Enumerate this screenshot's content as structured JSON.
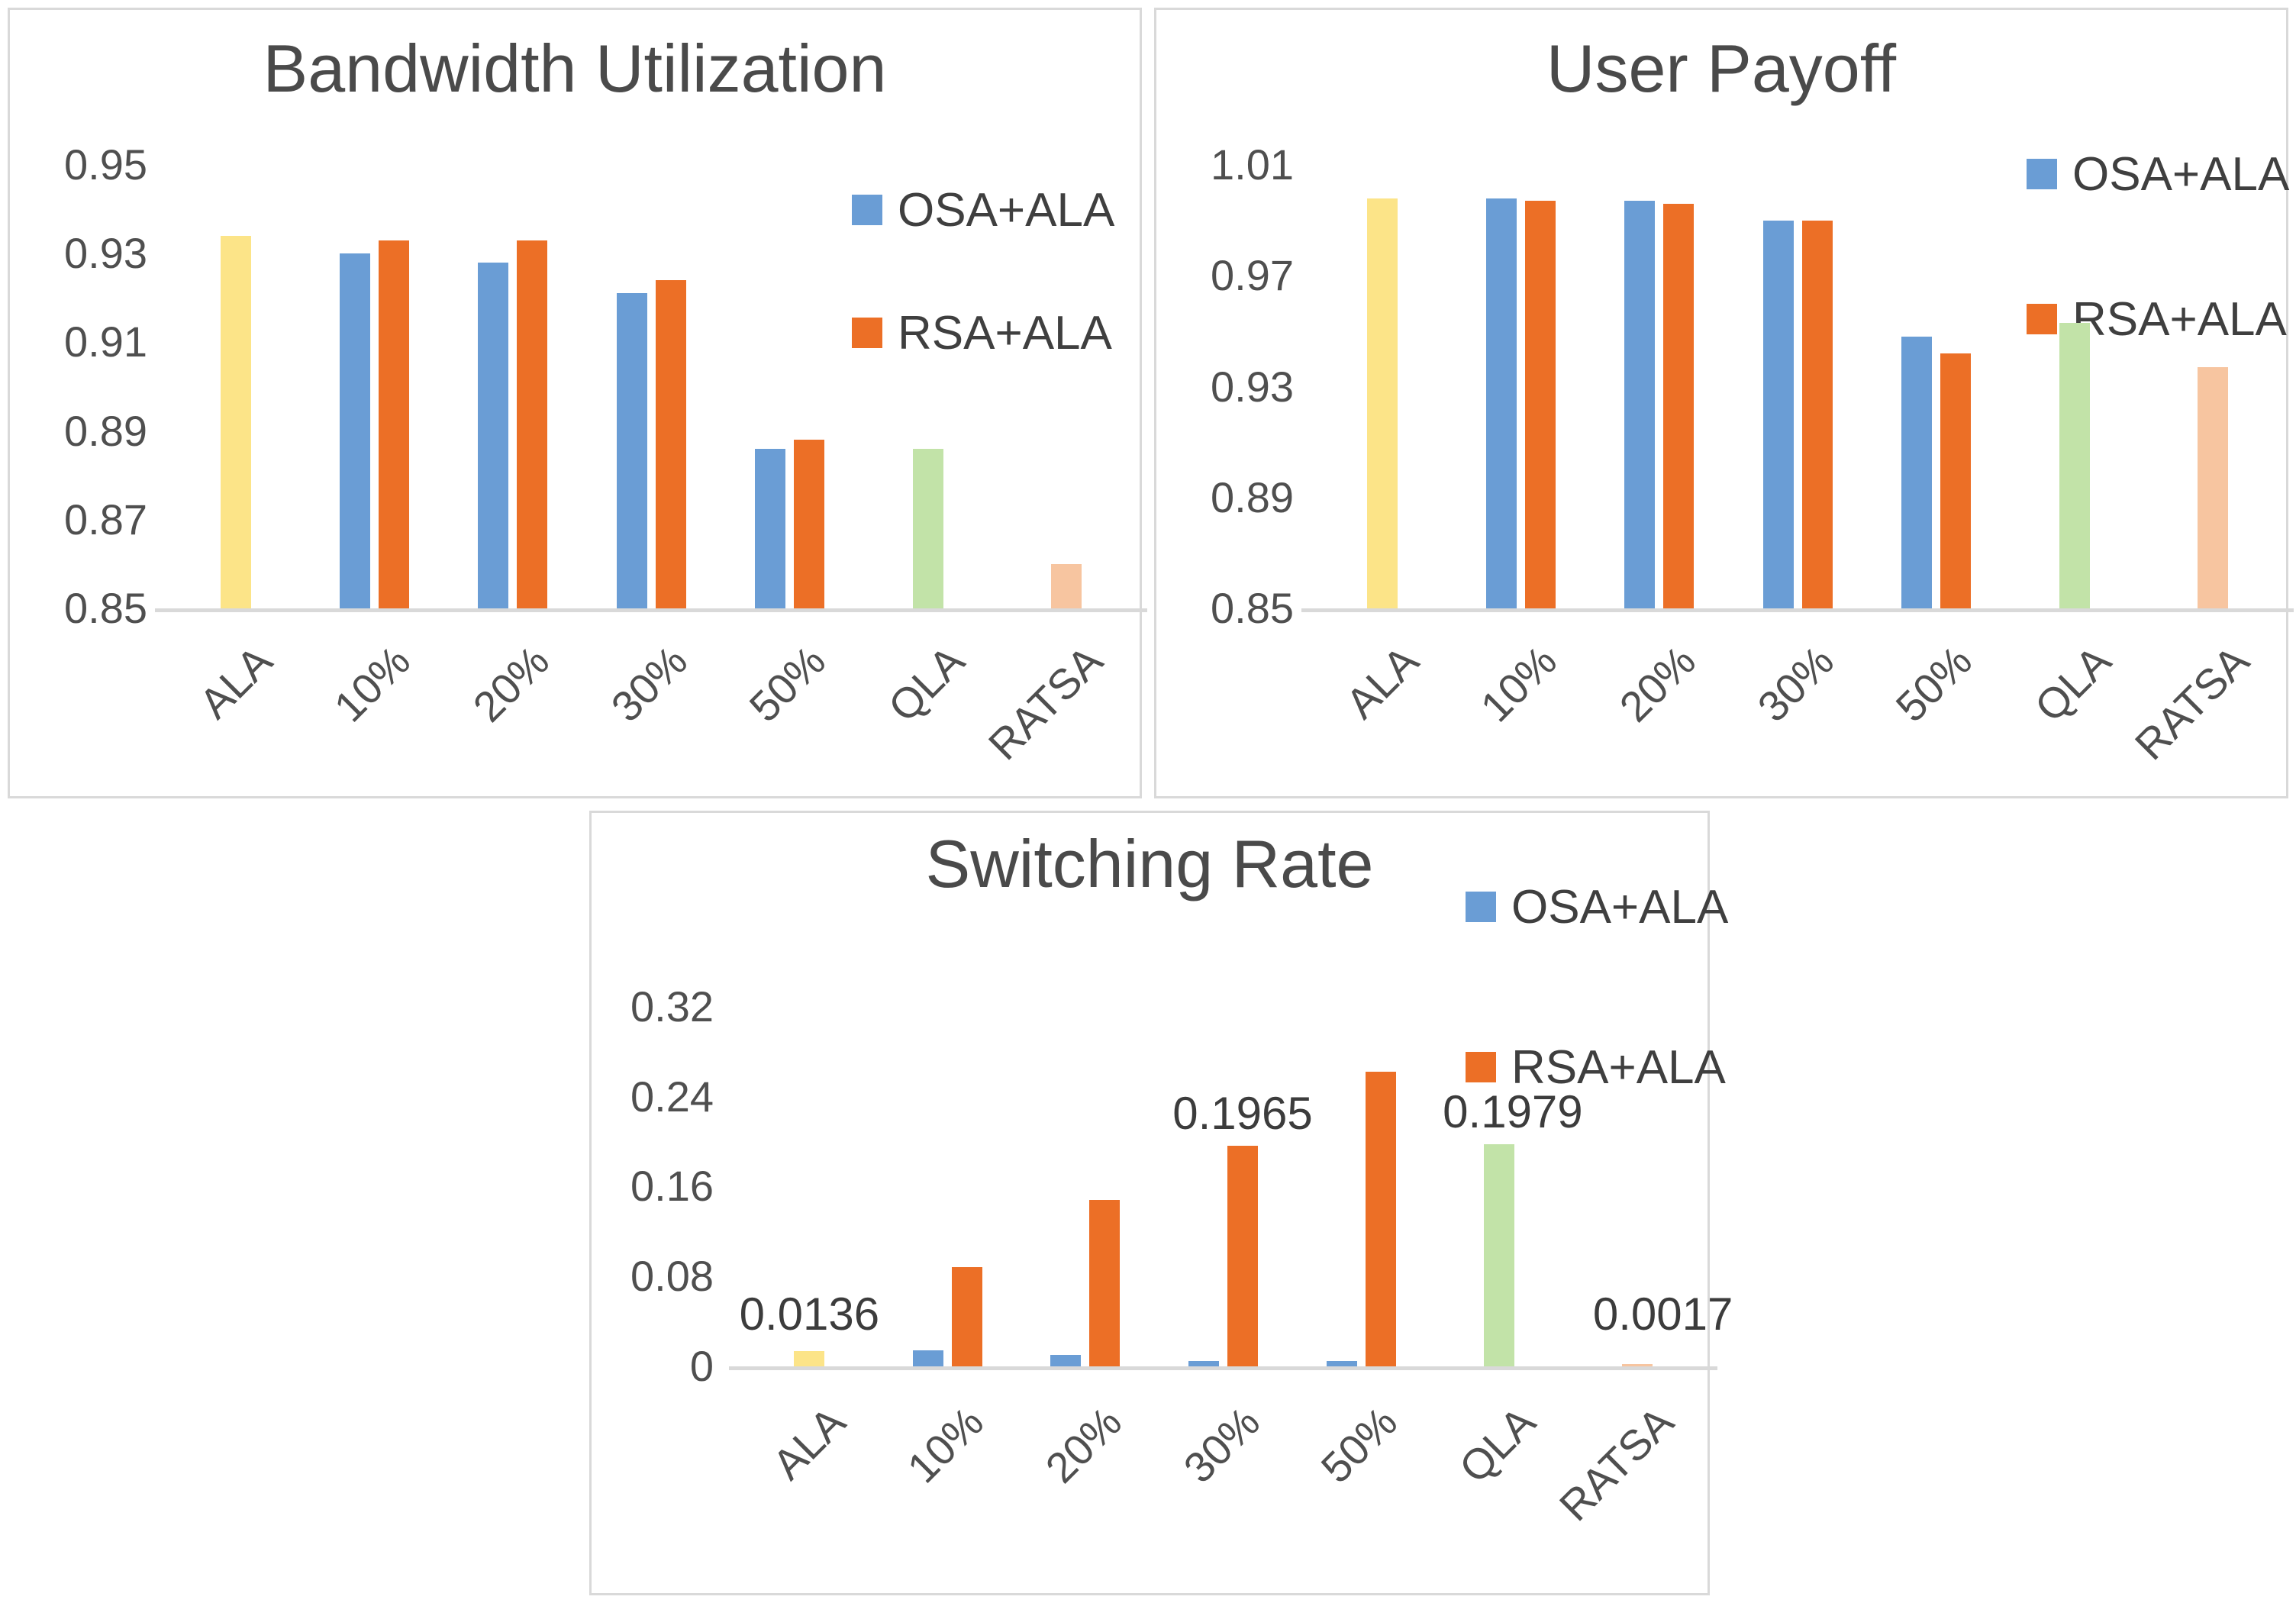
{
  "colors": {
    "osa_blue": "#6A9DD5",
    "rsa_orange": "#EC6F26",
    "ala_yellow": "#FCE488",
    "qla_green": "#C2E3A8",
    "ratsa_salmon": "#F7C5A0",
    "text_dark_gray": "#4A4A4A",
    "tick_gray": "#4F4F4F",
    "panel_border": "#D9D9D9",
    "axis_line": "#D9D9D9"
  },
  "legend_labels": [
    "OSA+ALA",
    "RSA+ALA"
  ],
  "chart_data": [
    {
      "id": "bandwidth-utilization",
      "type": "bar",
      "title": "Bandwidth Utilization",
      "categories": [
        "ALA",
        "10%",
        "20%",
        "30%",
        "50%",
        "QLA",
        "RATSA"
      ],
      "ylim": [
        0.85,
        0.95
      ],
      "yticks": [
        "0.95",
        "0.93",
        "0.91",
        "0.89",
        "0.87",
        "0.85"
      ],
      "grid": false,
      "legend_position": "top-right",
      "legend": [
        {
          "label": "OSA+ALA",
          "color": "#6A9DD5"
        },
        {
          "label": "RSA+ALA",
          "color": "#EC6F26"
        }
      ],
      "groups": [
        {
          "label": "ALA",
          "bars": [
            {
              "series": "ALA",
              "color": "#FCE488",
              "value": 0.934
            }
          ]
        },
        {
          "label": "10%",
          "bars": [
            {
              "series": "OSA+ALA",
              "color": "#6A9DD5",
              "value": 0.93
            },
            {
              "series": "RSA+ALA",
              "color": "#EC6F26",
              "value": 0.933
            }
          ]
        },
        {
          "label": "20%",
          "bars": [
            {
              "series": "OSA+ALA",
              "color": "#6A9DD5",
              "value": 0.928
            },
            {
              "series": "RSA+ALA",
              "color": "#EC6F26",
              "value": 0.933
            }
          ]
        },
        {
          "label": "30%",
          "bars": [
            {
              "series": "OSA+ALA",
              "color": "#6A9DD5",
              "value": 0.921
            },
            {
              "series": "RSA+ALA",
              "color": "#EC6F26",
              "value": 0.924
            }
          ]
        },
        {
          "label": "50%",
          "bars": [
            {
              "series": "OSA+ALA",
              "color": "#6A9DD5",
              "value": 0.886
            },
            {
              "series": "RSA+ALA",
              "color": "#EC6F26",
              "value": 0.888
            }
          ]
        },
        {
          "label": "QLA",
          "bars": [
            {
              "series": "QLA",
              "color": "#C2E3A8",
              "value": 0.886
            }
          ]
        },
        {
          "label": "RATSA",
          "bars": [
            {
              "series": "RATSA",
              "color": "#F7C5A0",
              "value": 0.86
            }
          ]
        }
      ]
    },
    {
      "id": "user-payoff",
      "type": "bar",
      "title": "User Payoff",
      "categories": [
        "ALA",
        "10%",
        "20%",
        "30%",
        "50%",
        "QLA",
        "RATSA"
      ],
      "ylim": [
        0.85,
        1.01
      ],
      "yticks": [
        "1.01",
        "0.97",
        "0.93",
        "0.89",
        "0.85"
      ],
      "grid": false,
      "legend_position": "top-right",
      "legend": [
        {
          "label": "OSA+ALA",
          "color": "#6A9DD5"
        },
        {
          "label": "RSA+ALA",
          "color": "#EC6F26"
        }
      ],
      "groups": [
        {
          "label": "ALA",
          "bars": [
            {
              "series": "ALA",
              "color": "#FCE488",
              "value": 0.998
            }
          ]
        },
        {
          "label": "10%",
          "bars": [
            {
              "series": "OSA+ALA",
              "color": "#6A9DD5",
              "value": 0.998
            },
            {
              "series": "RSA+ALA",
              "color": "#EC6F26",
              "value": 0.997
            }
          ]
        },
        {
          "label": "20%",
          "bars": [
            {
              "series": "OSA+ALA",
              "color": "#6A9DD5",
              "value": 0.997
            },
            {
              "series": "RSA+ALA",
              "color": "#EC6F26",
              "value": 0.996
            }
          ]
        },
        {
          "label": "30%",
          "bars": [
            {
              "series": "OSA+ALA",
              "color": "#6A9DD5",
              "value": 0.99
            },
            {
              "series": "RSA+ALA",
              "color": "#EC6F26",
              "value": 0.99
            }
          ]
        },
        {
          "label": "50%",
          "bars": [
            {
              "series": "OSA+ALA",
              "color": "#6A9DD5",
              "value": 0.948
            },
            {
              "series": "RSA+ALA",
              "color": "#EC6F26",
              "value": 0.942
            }
          ]
        },
        {
          "label": "QLA",
          "bars": [
            {
              "series": "QLA",
              "color": "#C2E3A8",
              "value": 0.953
            }
          ]
        },
        {
          "label": "RATSA",
          "bars": [
            {
              "series": "RATSA",
              "color": "#F7C5A0",
              "value": 0.937
            }
          ]
        }
      ]
    },
    {
      "id": "switching-rate",
      "type": "bar",
      "title": "Switching Rate",
      "categories": [
        "ALA",
        "10%",
        "20%",
        "30%",
        "50%",
        "QLA",
        "RATSA"
      ],
      "ylim": [
        0,
        0.32
      ],
      "yticks": [
        "0.32",
        "0.24",
        "0.16",
        "0.08",
        "0"
      ],
      "grid": false,
      "legend_position": "top-right",
      "legend": [
        {
          "label": "OSA+ALA",
          "color": "#6A9DD5"
        },
        {
          "label": "RSA+ALA",
          "color": "#EC6F26"
        }
      ],
      "groups": [
        {
          "label": "ALA",
          "bars": [
            {
              "series": "ALA",
              "color": "#FCE488",
              "value": 0.0136,
              "annotation": "0.0136"
            }
          ]
        },
        {
          "label": "10%",
          "bars": [
            {
              "series": "OSA+ALA",
              "color": "#6A9DD5",
              "value": 0.014
            },
            {
              "series": "RSA+ALA",
              "color": "#EC6F26",
              "value": 0.088
            }
          ]
        },
        {
          "label": "20%",
          "bars": [
            {
              "series": "OSA+ALA",
              "color": "#6A9DD5",
              "value": 0.01
            },
            {
              "series": "RSA+ALA",
              "color": "#EC6F26",
              "value": 0.148
            }
          ]
        },
        {
          "label": "30%",
          "bars": [
            {
              "series": "OSA+ALA",
              "color": "#6A9DD5",
              "value": 0.005
            },
            {
              "series": "RSA+ALA",
              "color": "#EC6F26",
              "value": 0.1965,
              "annotation": "0.1965"
            }
          ]
        },
        {
          "label": "50%",
          "bars": [
            {
              "series": "OSA+ALA",
              "color": "#6A9DD5",
              "value": 0.005
            },
            {
              "series": "RSA+ALA",
              "color": "#EC6F26",
              "value": 0.262
            }
          ]
        },
        {
          "label": "QLA",
          "bars": [
            {
              "series": "QLA",
              "color": "#C2E3A8",
              "value": 0.1979,
              "annotation": "0.1979"
            }
          ]
        },
        {
          "label": "RATSA",
          "bars": [
            {
              "series": "RATSA",
              "color": "#F7C5A0",
              "value": 0.0017,
              "annotation": "0.0017"
            }
          ]
        }
      ]
    }
  ]
}
